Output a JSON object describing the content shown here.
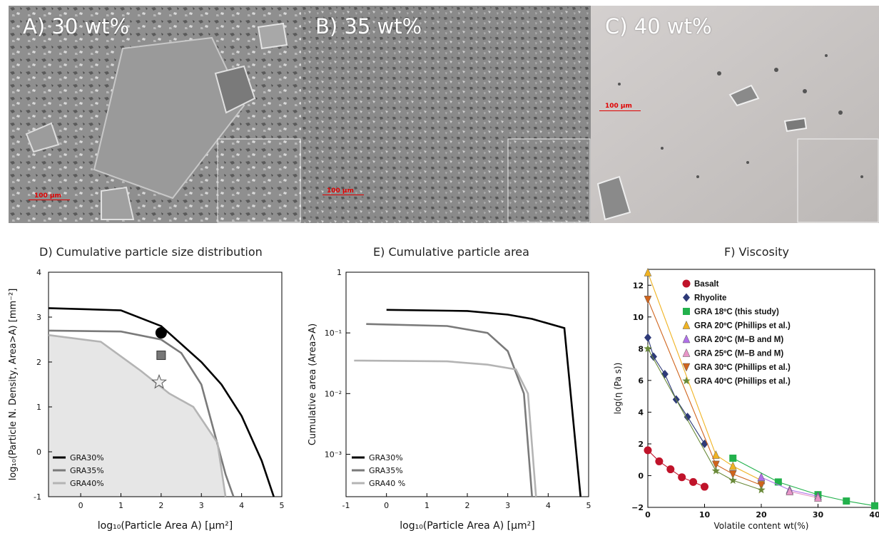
{
  "panels": {
    "a_label": "A) 30 wt%",
    "b_label": "B) 35 wt%",
    "c_label": "C) 40 wt%",
    "scale_a": "100 μm",
    "scale_b": "100 μm",
    "scale_c": "100 μm"
  },
  "colors": {
    "gra30": "#000000",
    "gra35": "#7a7a7a",
    "gra40": "#b4b4b4",
    "basalt": "#c0132a",
    "rhyolite": "#2e3a78",
    "gra18": "#22b14c",
    "gra20_phillips": "#f0b323",
    "gra20_mbm": "#b070e8",
    "gra25_mbm": "#e896c8",
    "gra30_phillips": "#d0641c",
    "gra40_phillips": "#6a8a3a"
  },
  "chart_data": [
    {
      "id": "D",
      "type": "line",
      "title": "D)  Cumulative particle size distribution",
      "xlabel": "log₁₀(Particle  Area  A)  [μm²]",
      "ylabel": "log₁₀(Particle N. Density, Area>A) [mm⁻²]",
      "xlim": [
        -0.8,
        5
      ],
      "ylim": [
        -1,
        4
      ],
      "xticks": [
        "0",
        "1",
        "2",
        "3",
        "4",
        "5"
      ],
      "yticks": [
        "-1",
        "0",
        "1",
        "2",
        "3",
        "4"
      ],
      "legend": [
        "GRA30%",
        "GRA35%",
        "GRA40%"
      ],
      "legend_position": "bottom-left",
      "series": [
        {
          "name": "GRA30%",
          "x": [
            -0.8,
            1.0,
            2.0,
            2.5,
            3.0,
            3.5,
            4.0,
            4.5,
            4.8
          ],
          "y": [
            3.2,
            3.15,
            2.8,
            2.4,
            2.0,
            1.5,
            0.8,
            -0.2,
            -1.0
          ]
        },
        {
          "name": "GRA35%",
          "x": [
            -0.8,
            1.0,
            2.0,
            2.5,
            3.0,
            3.3,
            3.6,
            3.8
          ],
          "y": [
            2.7,
            2.68,
            2.5,
            2.2,
            1.5,
            0.5,
            -0.5,
            -1.0
          ]
        },
        {
          "name": "GRA40%",
          "x": [
            -0.8,
            0.5,
            1.5,
            2.2,
            2.8,
            3.4,
            3.6
          ],
          "y": [
            2.6,
            2.45,
            1.8,
            1.3,
            1.0,
            0.2,
            -1.0
          ]
        }
      ],
      "markers": [
        {
          "shape": "circle",
          "x": 2.0,
          "y": 2.65
        },
        {
          "shape": "square",
          "x": 2.0,
          "y": 2.15
        },
        {
          "shape": "star",
          "x": 1.95,
          "y": 1.55
        }
      ]
    },
    {
      "id": "E",
      "type": "line",
      "title": "E)   Cumulative  particle  area",
      "xlabel": "log₁₀(Particle  Area  A)  [μm²]",
      "ylabel": "Cumulative  area  (Area>A)",
      "xlim": [
        -1,
        5
      ],
      "ylim": [
        0.0002,
        1
      ],
      "yscale": "log",
      "xticks": [
        "-1",
        "0",
        "1",
        "2",
        "3",
        "4",
        "5"
      ],
      "yticks": [
        "1",
        "10⁻¹",
        "10⁻²",
        "10⁻³"
      ],
      "legend": [
        "GRA30%",
        "GRA35%",
        "GRA40   %"
      ],
      "legend_position": "bottom-left",
      "series": [
        {
          "name": "GRA30%",
          "x": [
            0.0,
            2.0,
            3.0,
            3.6,
            4.4,
            4.8
          ],
          "y": [
            0.24,
            0.23,
            0.2,
            0.17,
            0.12,
            0.0002
          ]
        },
        {
          "name": "GRA35%",
          "x": [
            -0.5,
            1.5,
            2.5,
            3.0,
            3.4,
            3.6
          ],
          "y": [
            0.14,
            0.13,
            0.1,
            0.05,
            0.01,
            0.0002
          ]
        },
        {
          "name": "GRA40%",
          "x": [
            -0.8,
            1.5,
            2.5,
            3.2,
            3.5,
            3.7
          ],
          "y": [
            0.035,
            0.034,
            0.03,
            0.025,
            0.01,
            0.0002
          ]
        }
      ]
    },
    {
      "id": "F",
      "type": "scatter",
      "title": "F)  Viscosity",
      "xlabel": "Volatile content wt(%)",
      "ylabel": "log(η (Pa s))",
      "xlim": [
        0,
        40
      ],
      "ylim": [
        -2,
        13
      ],
      "xticks": [
        "0",
        "10",
        "20",
        "30",
        "40"
      ],
      "yticks": [
        "−2",
        "0",
        "2",
        "4",
        "6",
        "8",
        "10",
        "12"
      ],
      "legend_position": "top-right",
      "series": [
        {
          "name": "Basalt",
          "marker": "circle",
          "x": [
            0,
            2,
            4,
            6,
            8,
            10
          ],
          "y": [
            1.6,
            0.9,
            0.4,
            -0.1,
            -0.4,
            -0.7
          ]
        },
        {
          "name": "Rhyolite",
          "marker": "diamond",
          "x": [
            0,
            1,
            3,
            5,
            7,
            10
          ],
          "y": [
            8.7,
            7.5,
            6.4,
            4.8,
            3.7,
            2.0
          ]
        },
        {
          "name": "GRA 18ºC (this study)",
          "marker": "square",
          "x": [
            15,
            23,
            30,
            35,
            40
          ],
          "y": [
            1.1,
            -0.4,
            -1.2,
            -1.6,
            -1.9
          ]
        },
        {
          "name": "GRA 20ºC (Phillips et al.)",
          "marker": "triangle-up",
          "x": [
            0,
            12,
            15,
            20
          ],
          "y": [
            12.8,
            1.3,
            0.6,
            -0.3
          ]
        },
        {
          "name": "GRA 20ºC (M–B and M)",
          "marker": "triangle-up",
          "x": [
            20,
            25,
            30
          ],
          "y": [
            -0.1,
            -0.9,
            -1.3
          ]
        },
        {
          "name": "GRA 25ºC (M–B and M)",
          "marker": "triangle-up",
          "x": [
            25,
            30
          ],
          "y": [
            -1.0,
            -1.4
          ]
        },
        {
          "name": "GRA 30ºC (Phillips et al.)",
          "marker": "triangle-down",
          "x": [
            0,
            12,
            15,
            20
          ],
          "y": [
            11.1,
            0.7,
            0.1,
            -0.6
          ]
        },
        {
          "name": "GRA 40ºC (Phillips et al.)",
          "marker": "star",
          "x": [
            0,
            12,
            15,
            20
          ],
          "y": [
            8.0,
            0.3,
            -0.3,
            -0.9
          ]
        }
      ]
    }
  ]
}
